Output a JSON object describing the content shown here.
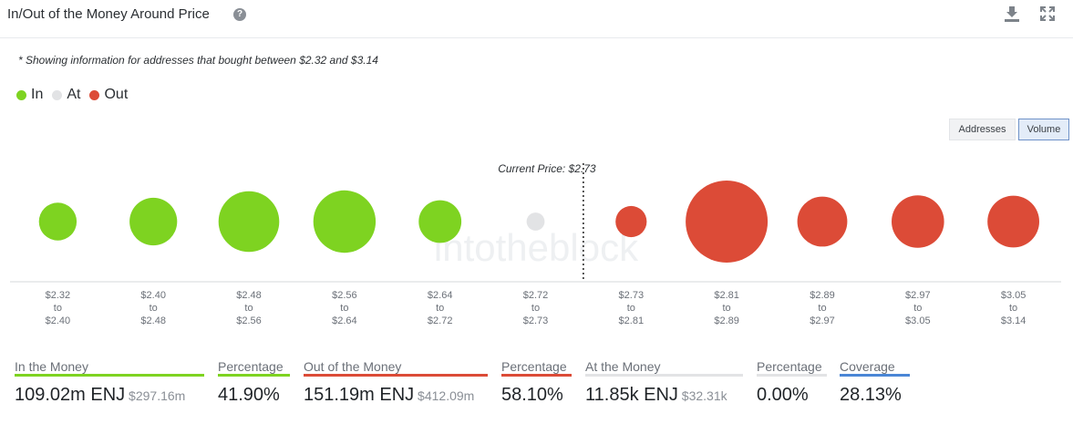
{
  "header": {
    "title": "In/Out of the Money Around Price",
    "help_glyph": "?"
  },
  "note": "* Showing information for addresses that bought between $2.32 and $3.14",
  "legend": [
    {
      "label": "In",
      "color": "#7ed321"
    },
    {
      "label": "At",
      "color": "#e2e3e5"
    },
    {
      "label": "Out",
      "color": "#dc4b37"
    }
  ],
  "toggles": {
    "addresses": "Addresses",
    "volume": "Volume",
    "active": "Volume"
  },
  "watermark": "intotheblock",
  "chart_data": {
    "type": "bubble",
    "current_price_label": "Current Price: $2.73",
    "current_price_after_index": 5,
    "range_joiner": "to",
    "bubble_size_metric": "volume",
    "colors": {
      "in": "#7ed321",
      "at": "#e2e3e5",
      "out": "#dc4b37"
    },
    "bins": [
      {
        "from": "$2.32",
        "to": "$2.40",
        "status": "in",
        "relative_size": 0.46
      },
      {
        "from": "$2.40",
        "to": "$2.48",
        "status": "in",
        "relative_size": 0.58
      },
      {
        "from": "$2.48",
        "to": "$2.56",
        "status": "in",
        "relative_size": 0.74
      },
      {
        "from": "$2.56",
        "to": "$2.64",
        "status": "in",
        "relative_size": 0.76
      },
      {
        "from": "$2.64",
        "to": "$2.72",
        "status": "in",
        "relative_size": 0.52
      },
      {
        "from": "$2.72",
        "to": "$2.73",
        "status": "at",
        "relative_size": 0.22
      },
      {
        "from": "$2.73",
        "to": "$2.81",
        "status": "out",
        "relative_size": 0.38
      },
      {
        "from": "$2.81",
        "to": "$2.89",
        "status": "out",
        "relative_size": 1.0
      },
      {
        "from": "$2.89",
        "to": "$2.97",
        "status": "out",
        "relative_size": 0.61
      },
      {
        "from": "$2.97",
        "to": "$3.05",
        "status": "out",
        "relative_size": 0.64
      },
      {
        "from": "$3.05",
        "to": "$3.14",
        "status": "out",
        "relative_size": 0.63
      }
    ]
  },
  "stats": [
    {
      "label": "In the Money",
      "value": "109.02m ENJ",
      "sub": "$297.16m",
      "color": "#7ed321"
    },
    {
      "label": "Percentage",
      "value": "41.90%",
      "sub": "",
      "color": "#7ed321"
    },
    {
      "label": "Out of the Money",
      "value": "151.19m ENJ",
      "sub": "$412.09m",
      "color": "#dc4b37"
    },
    {
      "label": "Percentage",
      "value": "58.10%",
      "sub": "",
      "color": "#dc4b37"
    },
    {
      "label": "At the Money",
      "value": "11.85k ENJ",
      "sub": "$32.31k",
      "color": "#e2e3e5"
    },
    {
      "label": "Percentage",
      "value": "0.00%",
      "sub": "",
      "color": "#e2e3e5"
    },
    {
      "label": "Coverage",
      "value": "28.13%",
      "sub": "",
      "color": "#4a86d6"
    }
  ]
}
